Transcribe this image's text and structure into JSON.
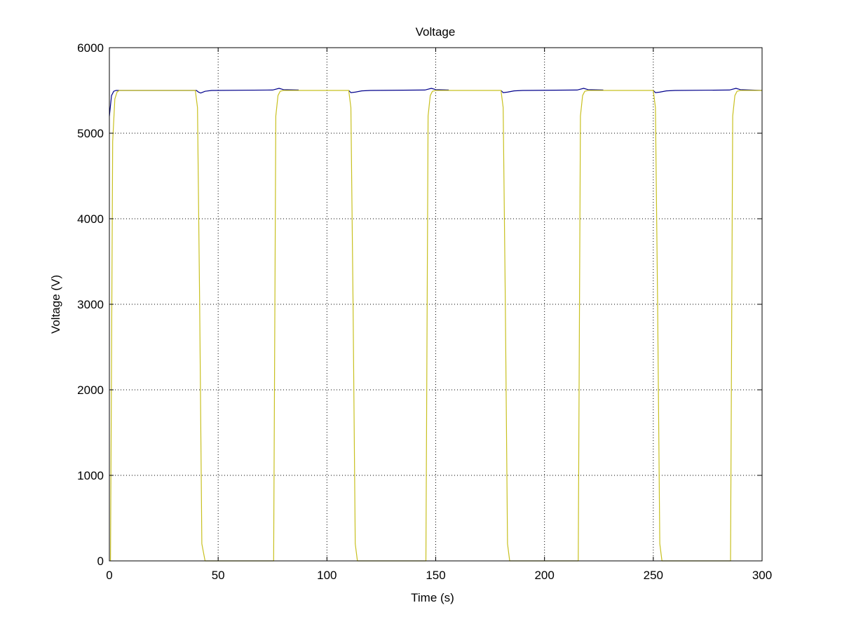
{
  "chart_data": {
    "type": "line",
    "title": "Voltage",
    "xlabel": "Time (s)",
    "ylabel": "Voltage (V)",
    "xlim": [
      0,
      300
    ],
    "ylim": [
      0,
      6000
    ],
    "xticks": [
      "0",
      "50",
      "100",
      "150",
      "200",
      "250",
      "300"
    ],
    "yticks": [
      "0",
      "1000",
      "2000",
      "3000",
      "4000",
      "5000",
      "6000"
    ],
    "grid": true,
    "legend": "none",
    "series": [
      {
        "color": "#00008b",
        "x": [
          0,
          1,
          2,
          3,
          4,
          5,
          8,
          40,
          41,
          42,
          44,
          47,
          75,
          78,
          80,
          87
        ],
        "y": [
          5200,
          5440,
          5490,
          5500,
          5500,
          5500,
          5500,
          5500,
          5480,
          5470,
          5490,
          5500,
          5505,
          5525,
          5510,
          5505
        ]
      },
      {
        "color": "#00008b",
        "x": [
          110,
          111,
          113,
          116,
          120,
          145,
          148,
          150,
          156
        ],
        "y": [
          5500,
          5475,
          5480,
          5495,
          5500,
          5505,
          5525,
          5510,
          5505
        ]
      },
      {
        "color": "#00008b",
        "x": [
          180,
          181,
          183,
          186,
          190,
          215,
          218,
          220,
          227
        ],
        "y": [
          5500,
          5475,
          5480,
          5495,
          5500,
          5505,
          5525,
          5510,
          5505
        ]
      },
      {
        "color": "#00008b",
        "x": [
          250,
          251,
          253,
          256,
          260,
          285,
          288,
          290,
          300
        ],
        "y": [
          5500,
          5475,
          5480,
          5495,
          5500,
          5505,
          5525,
          5510,
          5500
        ]
      },
      {
        "color": "#c8c020",
        "x": [
          0.5,
          1.5,
          2.5,
          3.5,
          4.5,
          6,
          8,
          39.5,
          40.5,
          41.5,
          42.5,
          44,
          50,
          75.5,
          76.5,
          77.5,
          78.5,
          80,
          82,
          110,
          111,
          112,
          113,
          114,
          120,
          145.5,
          146.5,
          147.5,
          148.5,
          150,
          152,
          180,
          181,
          182,
          183,
          184,
          190,
          215.5,
          216.5,
          217.5,
          218.5,
          220,
          222,
          250,
          251,
          252,
          253,
          254,
          260,
          285.5,
          286.5,
          287.5,
          288.5,
          290,
          300
        ],
        "y": [
          0,
          4900,
          5400,
          5480,
          5500,
          5500,
          5500,
          5500,
          5300,
          3000,
          200,
          0,
          0,
          0,
          5200,
          5440,
          5490,
          5500,
          5500,
          5500,
          5300,
          3000,
          200,
          0,
          0,
          0,
          5200,
          5440,
          5490,
          5500,
          5500,
          5500,
          5300,
          3000,
          200,
          0,
          0,
          0,
          5200,
          5440,
          5490,
          5500,
          5500,
          5500,
          5300,
          3000,
          200,
          0,
          0,
          0,
          5200,
          5440,
          5490,
          5500,
          5500
        ]
      }
    ]
  }
}
